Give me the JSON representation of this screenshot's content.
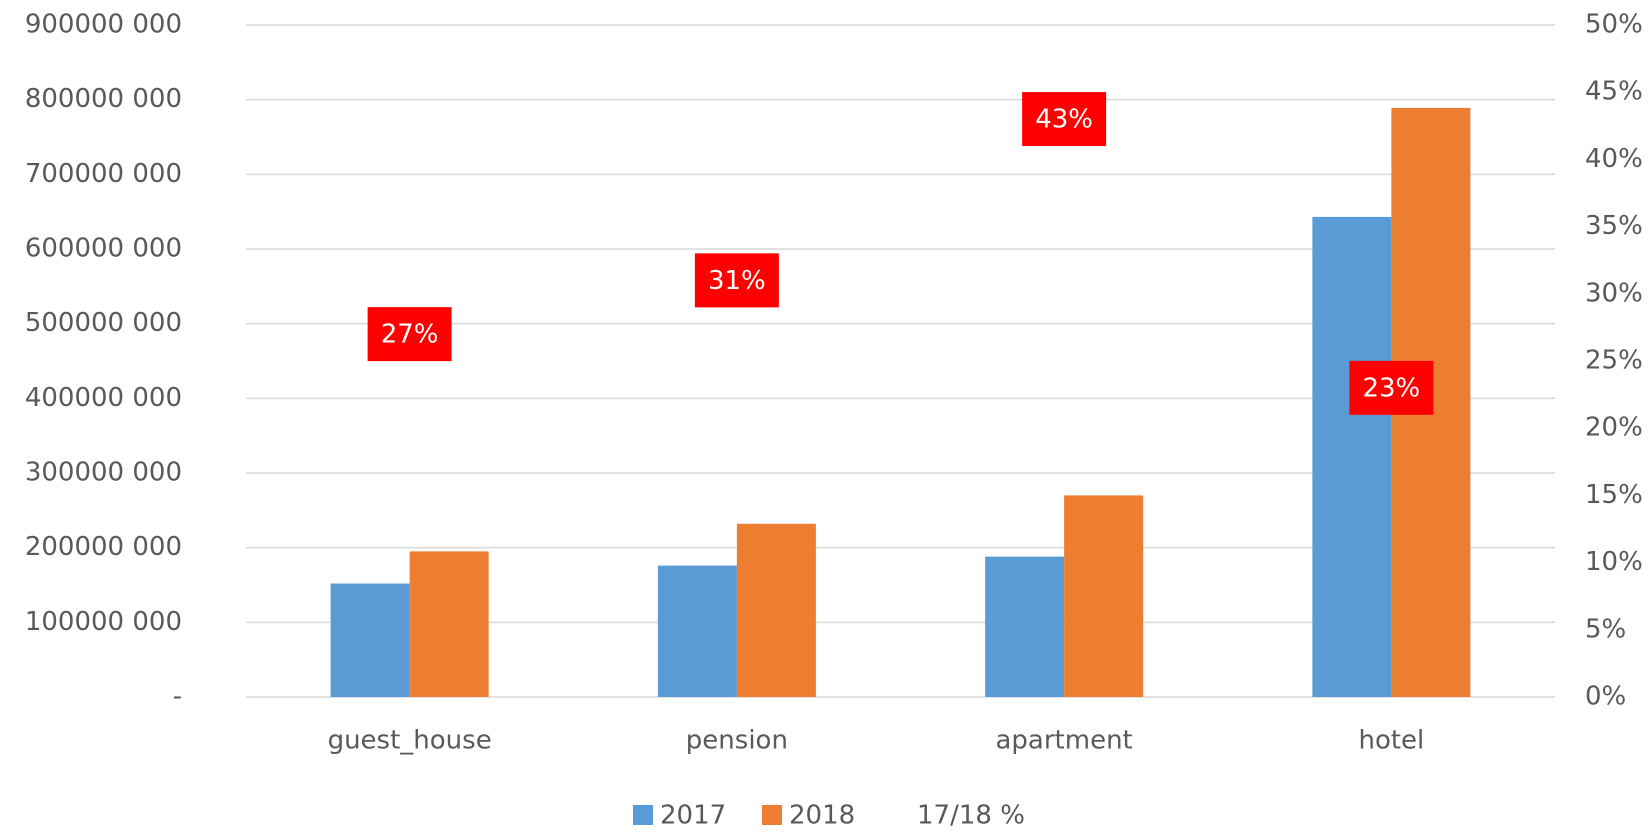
{
  "chart_data": {
    "type": "bar",
    "categories": [
      "guest_house",
      "pension",
      "apartment",
      "hotel"
    ],
    "series": [
      {
        "name": "2017",
        "color": "#5b9bd5",
        "values": [
          152000000,
          176000000,
          188000000,
          643000000
        ]
      },
      {
        "name": "2018",
        "color": "#ed7d31",
        "values": [
          195000000,
          232000000,
          270000000,
          789000000
        ]
      },
      {
        "name": "17/18 %",
        "color": "#ff0000",
        "axis": "y2",
        "values": [
          27,
          31,
          43,
          23
        ],
        "value_labels": [
          "27%",
          "31%",
          "43%",
          "23%"
        ]
      }
    ],
    "ylim": [
      0,
      900000000
    ],
    "yticks": [
      {
        "value": 0,
        "label": "-"
      },
      {
        "value": 100000000,
        "label": "100000 000"
      },
      {
        "value": 200000000,
        "label": "200000 000"
      },
      {
        "value": 300000000,
        "label": "300000 000"
      },
      {
        "value": 400000000,
        "label": "400000 000"
      },
      {
        "value": 500000000,
        "label": "500000 000"
      },
      {
        "value": 600000000,
        "label": "600000 000"
      },
      {
        "value": 700000000,
        "label": "700000 000"
      },
      {
        "value": 800000000,
        "label": "800000 000"
      },
      {
        "value": 900000000,
        "label": "900000 000"
      }
    ],
    "y2lim": [
      0,
      50
    ],
    "y2ticks": [
      {
        "value": 0,
        "label": "0%"
      },
      {
        "value": 5,
        "label": "5%"
      },
      {
        "value": 10,
        "label": "10%"
      },
      {
        "value": 15,
        "label": "15%"
      },
      {
        "value": 20,
        "label": "20%"
      },
      {
        "value": 25,
        "label": "25%"
      },
      {
        "value": 30,
        "label": "30%"
      },
      {
        "value": 35,
        "label": "35%"
      },
      {
        "value": 40,
        "label": "40%"
      },
      {
        "value": 45,
        "label": "45%"
      },
      {
        "value": 50,
        "label": "50%"
      }
    ],
    "grid": true,
    "legend": "bottom"
  }
}
